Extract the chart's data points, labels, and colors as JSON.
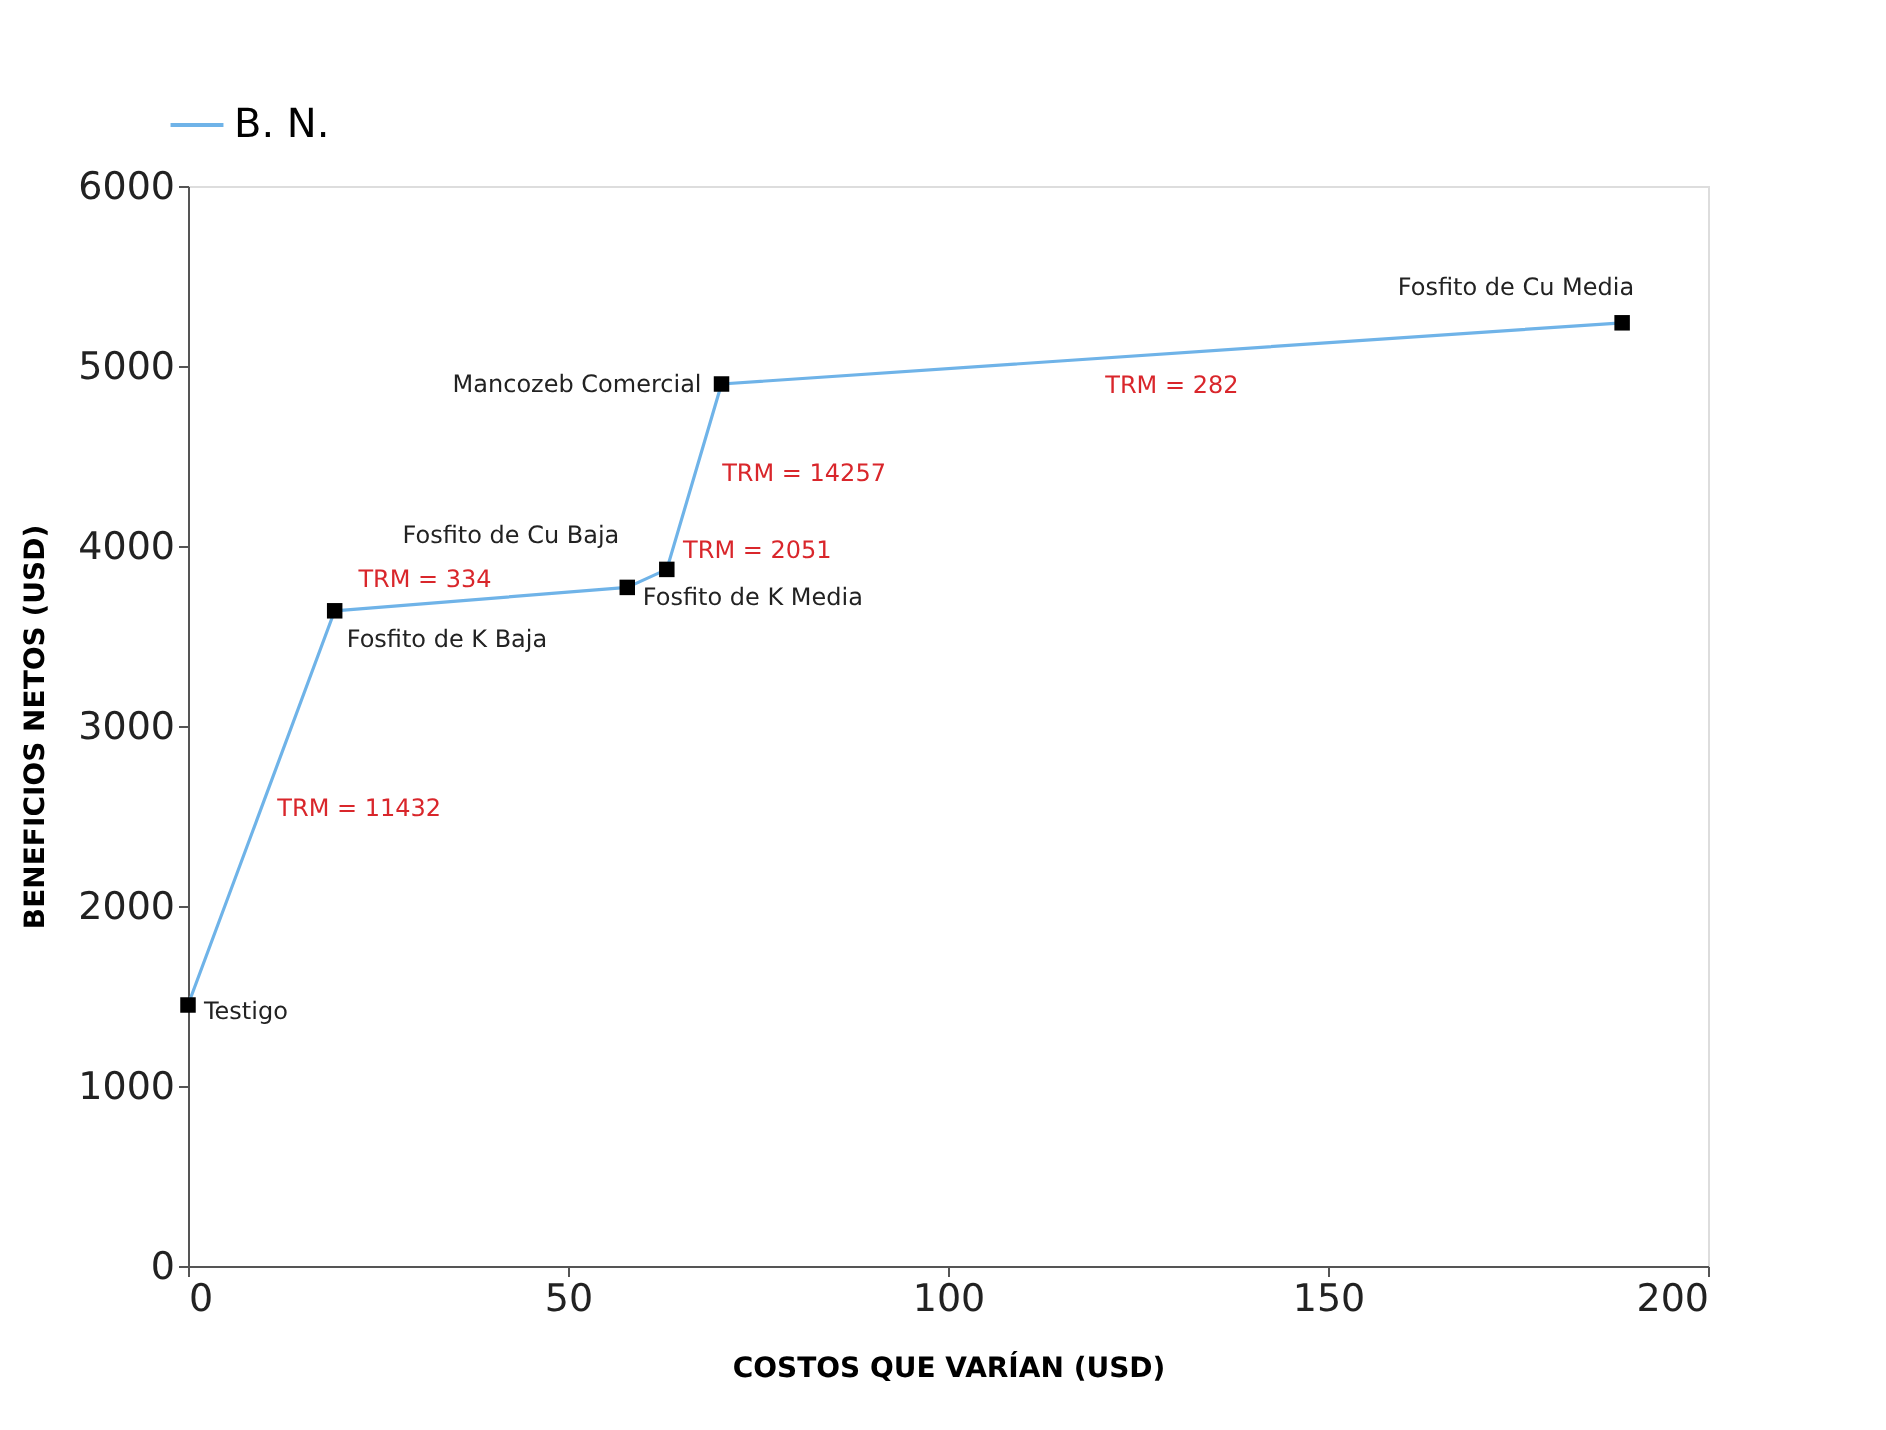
{
  "chart_data": {
    "type": "line",
    "xlabel": "COSTOS QUE VARÍAN (USD)",
    "ylabel": "BENEFICIOS NETOS (USD)",
    "x": [
      0,
      19.3,
      57.8,
      63,
      70.2,
      188.7
    ],
    "series": [
      {
        "name": "B. N.",
        "color": "#6fb3e8",
        "values": [
          1450,
          3640,
          3770,
          3870,
          4900,
          5240
        ]
      }
    ],
    "xlim": [
      0,
      200
    ],
    "xticks": [
      0,
      50,
      100,
      150,
      200
    ],
    "ylim": [
      0,
      6000
    ],
    "yticks": [
      0,
      1000,
      2000,
      3000,
      4000,
      5000,
      6000
    ],
    "marker": "square",
    "line_style": "solid",
    "grid": false,
    "legend": "top left",
    "annotations": [
      {
        "text": "Testigo",
        "x": 0,
        "y": 1450
      },
      {
        "text": "Fosfito de K Baja",
        "x": 19.3,
        "y": 3640
      },
      {
        "text": "Fosfito de Cu Baja",
        "x": 57.8,
        "y": 3770
      },
      {
        "text": "Fosfito de K Media",
        "x": 63,
        "y": 3870
      },
      {
        "text": "Mancozeb Comercial",
        "x": 70.2,
        "y": 4900
      },
      {
        "text": "Fosfito de Cu Media",
        "x": 188.7,
        "y": 5240
      },
      "TRM = 11432",
      "TRM = 334",
      "TRM = 2051",
      "TRM = 14257",
      "TRM = 282"
    ]
  }
}
